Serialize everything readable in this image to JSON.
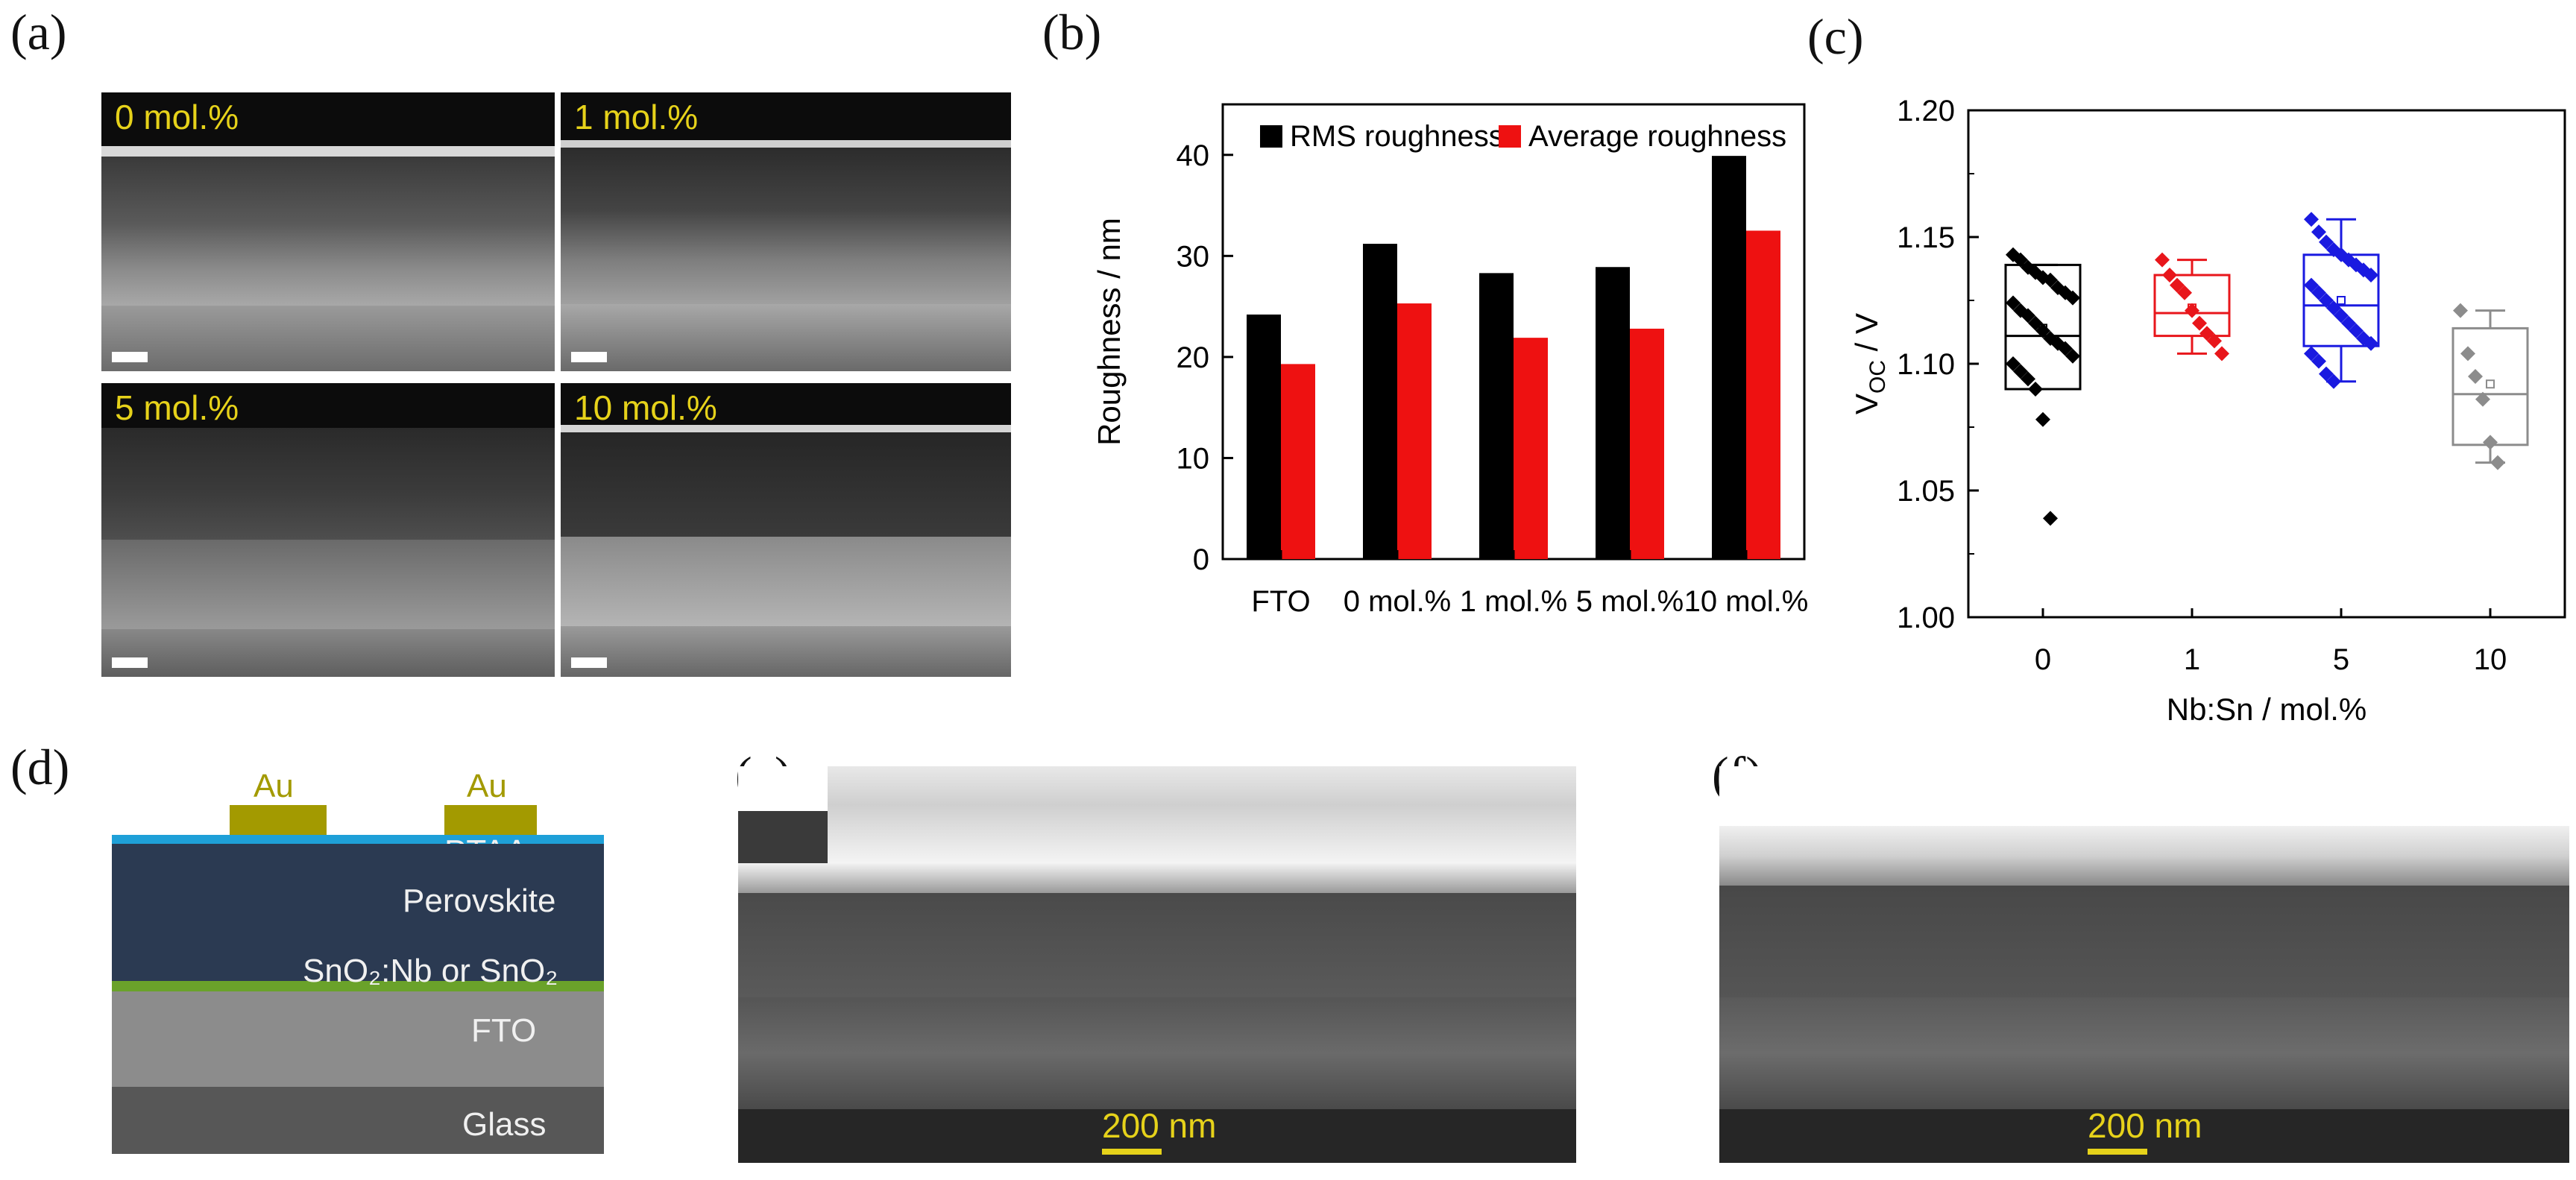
{
  "panel_labels": {
    "a": "(a)",
    "b": "(b)",
    "c": "(c)",
    "d": "(d)",
    "e": "(e)",
    "f": "(f)"
  },
  "panel_a": {
    "tiles": [
      "0 mol.%",
      "1 mol.%",
      "5 mol.%",
      "10 mol.%"
    ]
  },
  "panel_d": {
    "au_left": "Au",
    "au_right": "Au",
    "ptaa": "PTAA",
    "perovskite": "Perovskite",
    "etl": "SnO₂:Nb or SnO₂",
    "fto": "FTO",
    "glass": "Glass",
    "colors": {
      "au": "#a39a00",
      "ptaa": "#1ea0d8",
      "perovskite": "#2b3a52",
      "etl": "#6aa22a",
      "fto": "#8c8c8c",
      "glass": "#575757"
    }
  },
  "panel_e": {
    "scale": "200 nm"
  },
  "panel_f": {
    "scale": "200 nm"
  },
  "chart_data": [
    {
      "type": "bar",
      "ylabel": "Roughness / nm",
      "ylim": [
        0,
        45
      ],
      "yticks": [
        "0",
        "10",
        "20",
        "30",
        "40"
      ],
      "categories": [
        "FTO",
        "0 mol.%",
        "1 mol.%",
        "5 mol.%",
        "10 mol.%"
      ],
      "series": [
        {
          "name": "RMS roughness",
          "color": "#000000",
          "values": [
            24.2,
            31.2,
            28.3,
            28.9,
            39.9
          ]
        },
        {
          "name": "Average roughness",
          "color": "#ee1111",
          "values": [
            19.3,
            25.3,
            21.9,
            22.8,
            32.5
          ]
        }
      ],
      "legend": "top"
    },
    {
      "type": "scatter",
      "ylabel_main": "V",
      "ylabel_sub": "OC",
      "ylabel_rest": " / V",
      "xlabel": "Nb:Sn / mol.%",
      "ylim": [
        1.0,
        1.2
      ],
      "yticks": [
        "1.00",
        "1.05",
        "1.10",
        "1.15",
        "1.20"
      ],
      "categories": [
        "0",
        "1",
        "5",
        "10"
      ],
      "groups": [
        {
          "name": "0",
          "color": "#000000",
          "box": {
            "q1": 1.09,
            "median": 1.111,
            "q3": 1.139,
            "mean": 1.114,
            "whisker_low": 1.09,
            "whisker_high": 1.139
          },
          "points": [
            1.143,
            1.141,
            1.138,
            1.136,
            1.134,
            1.133,
            1.13,
            1.128,
            1.126,
            1.124,
            1.121,
            1.119,
            1.116,
            1.113,
            1.11,
            1.108,
            1.106,
            1.103,
            1.1,
            1.097,
            1.094,
            1.09,
            1.078,
            1.039
          ]
        },
        {
          "name": "1",
          "color": "#e8161b",
          "box": {
            "q1": 1.111,
            "median": 1.12,
            "q3": 1.135,
            "mean": 1.122,
            "whisker_low": 1.104,
            "whisker_high": 1.141
          },
          "points": [
            1.141,
            1.135,
            1.131,
            1.128,
            1.121,
            1.116,
            1.112,
            1.109,
            1.104
          ]
        },
        {
          "name": "5",
          "color": "#1a1ae0",
          "box": {
            "q1": 1.107,
            "median": 1.123,
            "q3": 1.143,
            "mean": 1.125,
            "whisker_low": 1.093,
            "whisker_high": 1.157
          },
          "points": [
            1.157,
            1.152,
            1.148,
            1.145,
            1.143,
            1.141,
            1.139,
            1.137,
            1.135,
            1.131,
            1.128,
            1.125,
            1.122,
            1.119,
            1.116,
            1.113,
            1.11,
            1.108,
            1.104,
            1.101,
            1.096,
            1.093
          ]
        },
        {
          "name": "10",
          "color": "#8c8c8c",
          "box": {
            "q1": 1.068,
            "median": 1.088,
            "q3": 1.114,
            "mean": 1.092,
            "whisker_low": 1.061,
            "whisker_high": 1.121
          },
          "points": [
            1.121,
            1.104,
            1.095,
            1.086,
            1.069,
            1.061
          ]
        }
      ]
    }
  ]
}
